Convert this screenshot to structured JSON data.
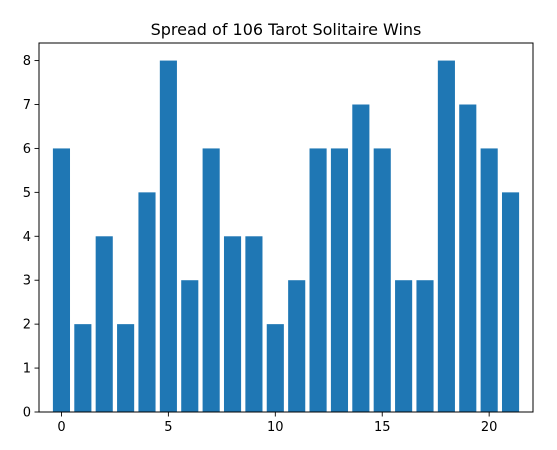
{
  "chart_data": {
    "type": "bar",
    "title": "Spread of 106 Tarot Solitaire Wins",
    "xlabel": "",
    "ylabel": "",
    "x": [
      0,
      1,
      2,
      3,
      4,
      5,
      6,
      7,
      8,
      9,
      10,
      11,
      12,
      13,
      14,
      15,
      16,
      17,
      18,
      19,
      20,
      21
    ],
    "values": [
      6,
      2,
      4,
      2,
      5,
      8,
      3,
      6,
      4,
      4,
      2,
      3,
      6,
      6,
      7,
      6,
      3,
      3,
      8,
      7,
      6,
      5
    ],
    "xlim": [
      -1.05,
      22.05
    ],
    "ylim": [
      0,
      8.4
    ],
    "xticks": [
      0,
      5,
      10,
      15,
      20
    ],
    "yticks": [
      0,
      1,
      2,
      3,
      4,
      5,
      6,
      7,
      8
    ],
    "bar_color": "#1f77b4",
    "grid": false,
    "legend": "none"
  }
}
